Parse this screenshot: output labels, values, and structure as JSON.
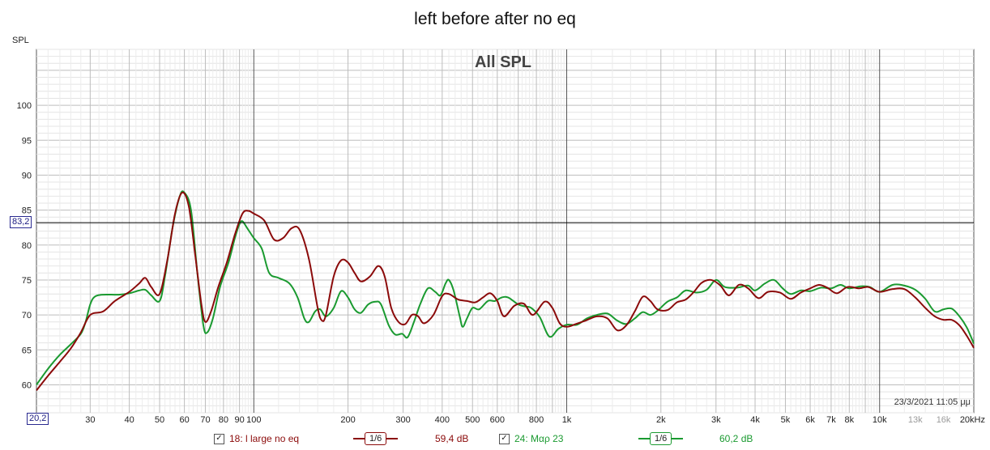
{
  "title": "left before after no eq",
  "chart_data": {
    "type": "line",
    "title": "left before after no eq",
    "subtitle": "All SPL",
    "ylabel": "SPL",
    "xscale": "log",
    "xlim": [
      20.2,
      20000
    ],
    "ylim": [
      56,
      108
    ],
    "y_ticks": [
      60,
      65,
      70,
      75,
      80,
      85,
      90,
      95,
      100
    ],
    "x_ticks": [
      {
        "v": 30,
        "label": "30"
      },
      {
        "v": 40,
        "label": "40"
      },
      {
        "v": 50,
        "label": "50"
      },
      {
        "v": 60,
        "label": "60"
      },
      {
        "v": 70,
        "label": "70"
      },
      {
        "v": 80,
        "label": "80"
      },
      {
        "v": 90,
        "label": "90"
      },
      {
        "v": 100,
        "label": "100"
      },
      {
        "v": 200,
        "label": "200"
      },
      {
        "v": 300,
        "label": "300"
      },
      {
        "v": 400,
        "label": "400"
      },
      {
        "v": 500,
        "label": "500"
      },
      {
        "v": 600,
        "label": "600"
      },
      {
        "v": 800,
        "label": "800"
      },
      {
        "v": 1000,
        "label": "1k"
      },
      {
        "v": 2000,
        "label": "2k"
      },
      {
        "v": 3000,
        "label": "3k"
      },
      {
        "v": 4000,
        "label": "4k"
      },
      {
        "v": 5000,
        "label": "5k"
      },
      {
        "v": 6000,
        "label": "6k"
      },
      {
        "v": 7000,
        "label": "7k"
      },
      {
        "v": 8000,
        "label": "8k"
      },
      {
        "v": 10000,
        "label": "10k"
      },
      {
        "v": 13000,
        "label": "13k"
      },
      {
        "v": 16000,
        "label": "16k"
      },
      {
        "v": 20000,
        "label": "20kHz"
      }
    ],
    "x_min_label": "20,2",
    "cursor_y": 83.2,
    "cursor_label": "83,2",
    "grid": true,
    "timestamp": "23/3/2021 11:05 μμ",
    "series": [
      {
        "name": "18: l large no eq",
        "color": "#8b0a0a",
        "smoothing": "1/6",
        "level": "59,4 dB",
        "points": [
          [
            20.2,
            59.2
          ],
          [
            22,
            61.3
          ],
          [
            24,
            63.3
          ],
          [
            26,
            65.2
          ],
          [
            28,
            67.5
          ],
          [
            30,
            70.0
          ],
          [
            33,
            70.5
          ],
          [
            36,
            72.0
          ],
          [
            40,
            73.3
          ],
          [
            43,
            74.5
          ],
          [
            45,
            75.3
          ],
          [
            47,
            74.0
          ],
          [
            50,
            73.0
          ],
          [
            53,
            78.0
          ],
          [
            56,
            84.5
          ],
          [
            59,
            87.5
          ],
          [
            62,
            85.5
          ],
          [
            65,
            78.5
          ],
          [
            68,
            71.5
          ],
          [
            70,
            69.0
          ],
          [
            73,
            70.5
          ],
          [
            77,
            74.0
          ],
          [
            82,
            77.5
          ],
          [
            87,
            81.5
          ],
          [
            92,
            84.5
          ],
          [
            96,
            84.9
          ],
          [
            100,
            84.5
          ],
          [
            108,
            83.5
          ],
          [
            116,
            80.8
          ],
          [
            124,
            81.0
          ],
          [
            132,
            82.4
          ],
          [
            140,
            82.2
          ],
          [
            150,
            78.0
          ],
          [
            160,
            71.0
          ],
          [
            165,
            69.2
          ],
          [
            170,
            70.0
          ],
          [
            180,
            75.5
          ],
          [
            190,
            77.8
          ],
          [
            200,
            77.5
          ],
          [
            210,
            76.0
          ],
          [
            220,
            74.8
          ],
          [
            235,
            75.5
          ],
          [
            250,
            77.0
          ],
          [
            262,
            75.5
          ],
          [
            275,
            71.0
          ],
          [
            290,
            69.0
          ],
          [
            305,
            68.7
          ],
          [
            320,
            70.0
          ],
          [
            335,
            69.8
          ],
          [
            350,
            68.8
          ],
          [
            375,
            70.0
          ],
          [
            400,
            72.7
          ],
          [
            420,
            73.0
          ],
          [
            450,
            72.2
          ],
          [
            480,
            72.0
          ],
          [
            510,
            71.8
          ],
          [
            540,
            72.5
          ],
          [
            570,
            73.1
          ],
          [
            600,
            72.0
          ],
          [
            630,
            69.8
          ],
          [
            680,
            71.3
          ],
          [
            730,
            71.6
          ],
          [
            780,
            70.0
          ],
          [
            850,
            71.9
          ],
          [
            900,
            71.0
          ],
          [
            950,
            68.8
          ],
          [
            1000,
            68.3
          ],
          [
            1070,
            68.7
          ],
          [
            1150,
            69.2
          ],
          [
            1250,
            69.8
          ],
          [
            1350,
            69.5
          ],
          [
            1450,
            67.8
          ],
          [
            1550,
            68.5
          ],
          [
            1650,
            70.5
          ],
          [
            1750,
            72.6
          ],
          [
            1850,
            72.0
          ],
          [
            1950,
            70.8
          ],
          [
            2100,
            70.7
          ],
          [
            2250,
            71.8
          ],
          [
            2400,
            72.2
          ],
          [
            2550,
            73.3
          ],
          [
            2700,
            74.6
          ],
          [
            2900,
            75.0
          ],
          [
            3100,
            74.2
          ],
          [
            3300,
            72.8
          ],
          [
            3550,
            74.3
          ],
          [
            3800,
            73.8
          ],
          [
            4100,
            72.4
          ],
          [
            4400,
            73.3
          ],
          [
            4800,
            73.2
          ],
          [
            5200,
            72.3
          ],
          [
            5600,
            73.2
          ],
          [
            6000,
            73.8
          ],
          [
            6400,
            74.3
          ],
          [
            6800,
            73.9
          ],
          [
            7300,
            73.1
          ],
          [
            7900,
            74.0
          ],
          [
            8600,
            73.8
          ],
          [
            9200,
            74.0
          ],
          [
            10000,
            73.3
          ],
          [
            11000,
            73.7
          ],
          [
            12000,
            73.7
          ],
          [
            13000,
            72.5
          ],
          [
            14000,
            71.0
          ],
          [
            15000,
            69.8
          ],
          [
            16000,
            69.3
          ],
          [
            17000,
            69.3
          ],
          [
            18000,
            68.5
          ],
          [
            19000,
            67.0
          ],
          [
            20000,
            65.3
          ]
        ]
      },
      {
        "name": "24: Μαρ 23",
        "color": "#1a9a30",
        "smoothing": "1/6",
        "level": "60,2 dB",
        "points": [
          [
            20.2,
            60.0
          ],
          [
            22,
            62.3
          ],
          [
            24,
            64.3
          ],
          [
            26,
            65.8
          ],
          [
            28,
            67.3
          ],
          [
            29,
            69.0
          ],
          [
            30,
            71.5
          ],
          [
            31,
            72.6
          ],
          [
            33,
            72.9
          ],
          [
            37,
            72.9
          ],
          [
            40,
            73.1
          ],
          [
            43,
            73.5
          ],
          [
            45,
            73.6
          ],
          [
            47,
            72.8
          ],
          [
            50,
            72.0
          ],
          [
            52,
            75.5
          ],
          [
            55,
            82.5
          ],
          [
            58,
            87.0
          ],
          [
            60,
            87.5
          ],
          [
            63,
            85.0
          ],
          [
            66,
            76.0
          ],
          [
            69,
            68.5
          ],
          [
            71,
            67.5
          ],
          [
            74,
            69.5
          ],
          [
            78,
            74.0
          ],
          [
            83,
            77.5
          ],
          [
            87,
            81.0
          ],
          [
            90,
            83.0
          ],
          [
            92,
            83.4
          ],
          [
            95,
            82.5
          ],
          [
            100,
            81.0
          ],
          [
            106,
            79.5
          ],
          [
            112,
            76.0
          ],
          [
            120,
            75.3
          ],
          [
            130,
            74.5
          ],
          [
            138,
            72.5
          ],
          [
            145,
            69.5
          ],
          [
            150,
            69.0
          ],
          [
            157,
            70.5
          ],
          [
            163,
            70.8
          ],
          [
            170,
            69.8
          ],
          [
            180,
            71.0
          ],
          [
            190,
            73.4
          ],
          [
            200,
            72.5
          ],
          [
            210,
            70.8
          ],
          [
            220,
            70.3
          ],
          [
            232,
            71.5
          ],
          [
            245,
            71.9
          ],
          [
            255,
            71.5
          ],
          [
            270,
            68.5
          ],
          [
            283,
            67.2
          ],
          [
            298,
            67.3
          ],
          [
            310,
            66.8
          ],
          [
            325,
            69.0
          ],
          [
            340,
            71.5
          ],
          [
            360,
            73.8
          ],
          [
            380,
            73.3
          ],
          [
            395,
            72.8
          ],
          [
            410,
            74.5
          ],
          [
            420,
            75.0
          ],
          [
            435,
            73.5
          ],
          [
            455,
            69.8
          ],
          [
            465,
            68.3
          ],
          [
            480,
            69.5
          ],
          [
            500,
            71.0
          ],
          [
            525,
            70.8
          ],
          [
            560,
            72.0
          ],
          [
            590,
            72.0
          ],
          [
            620,
            72.5
          ],
          [
            650,
            72.5
          ],
          [
            700,
            71.5
          ],
          [
            740,
            71.2
          ],
          [
            770,
            71.0
          ],
          [
            820,
            69.7
          ],
          [
            880,
            66.9
          ],
          [
            940,
            68.0
          ],
          [
            1000,
            68.6
          ],
          [
            1080,
            68.6
          ],
          [
            1160,
            69.5
          ],
          [
            1250,
            70.0
          ],
          [
            1350,
            70.2
          ],
          [
            1450,
            69.2
          ],
          [
            1550,
            68.7
          ],
          [
            1650,
            69.5
          ],
          [
            1750,
            70.4
          ],
          [
            1850,
            70.0
          ],
          [
            1950,
            70.6
          ],
          [
            2100,
            71.9
          ],
          [
            2250,
            72.5
          ],
          [
            2400,
            73.5
          ],
          [
            2600,
            73.2
          ],
          [
            2800,
            73.6
          ],
          [
            3000,
            75.0
          ],
          [
            3200,
            74.0
          ],
          [
            3500,
            73.9
          ],
          [
            3800,
            74.2
          ],
          [
            4000,
            73.5
          ],
          [
            4300,
            74.5
          ],
          [
            4600,
            75.0
          ],
          [
            4900,
            73.8
          ],
          [
            5200,
            73.0
          ],
          [
            5600,
            73.5
          ],
          [
            6000,
            73.4
          ],
          [
            6500,
            73.9
          ],
          [
            7000,
            73.8
          ],
          [
            7500,
            74.3
          ],
          [
            8000,
            73.8
          ],
          [
            8700,
            74.1
          ],
          [
            9300,
            74.0
          ],
          [
            10000,
            73.3
          ],
          [
            11000,
            74.3
          ],
          [
            12000,
            74.2
          ],
          [
            13000,
            73.6
          ],
          [
            14000,
            72.3
          ],
          [
            15000,
            70.5
          ],
          [
            16000,
            70.8
          ],
          [
            17000,
            70.9
          ],
          [
            18000,
            69.8
          ],
          [
            19000,
            68.2
          ],
          [
            20000,
            65.9
          ]
        ]
      }
    ]
  }
}
